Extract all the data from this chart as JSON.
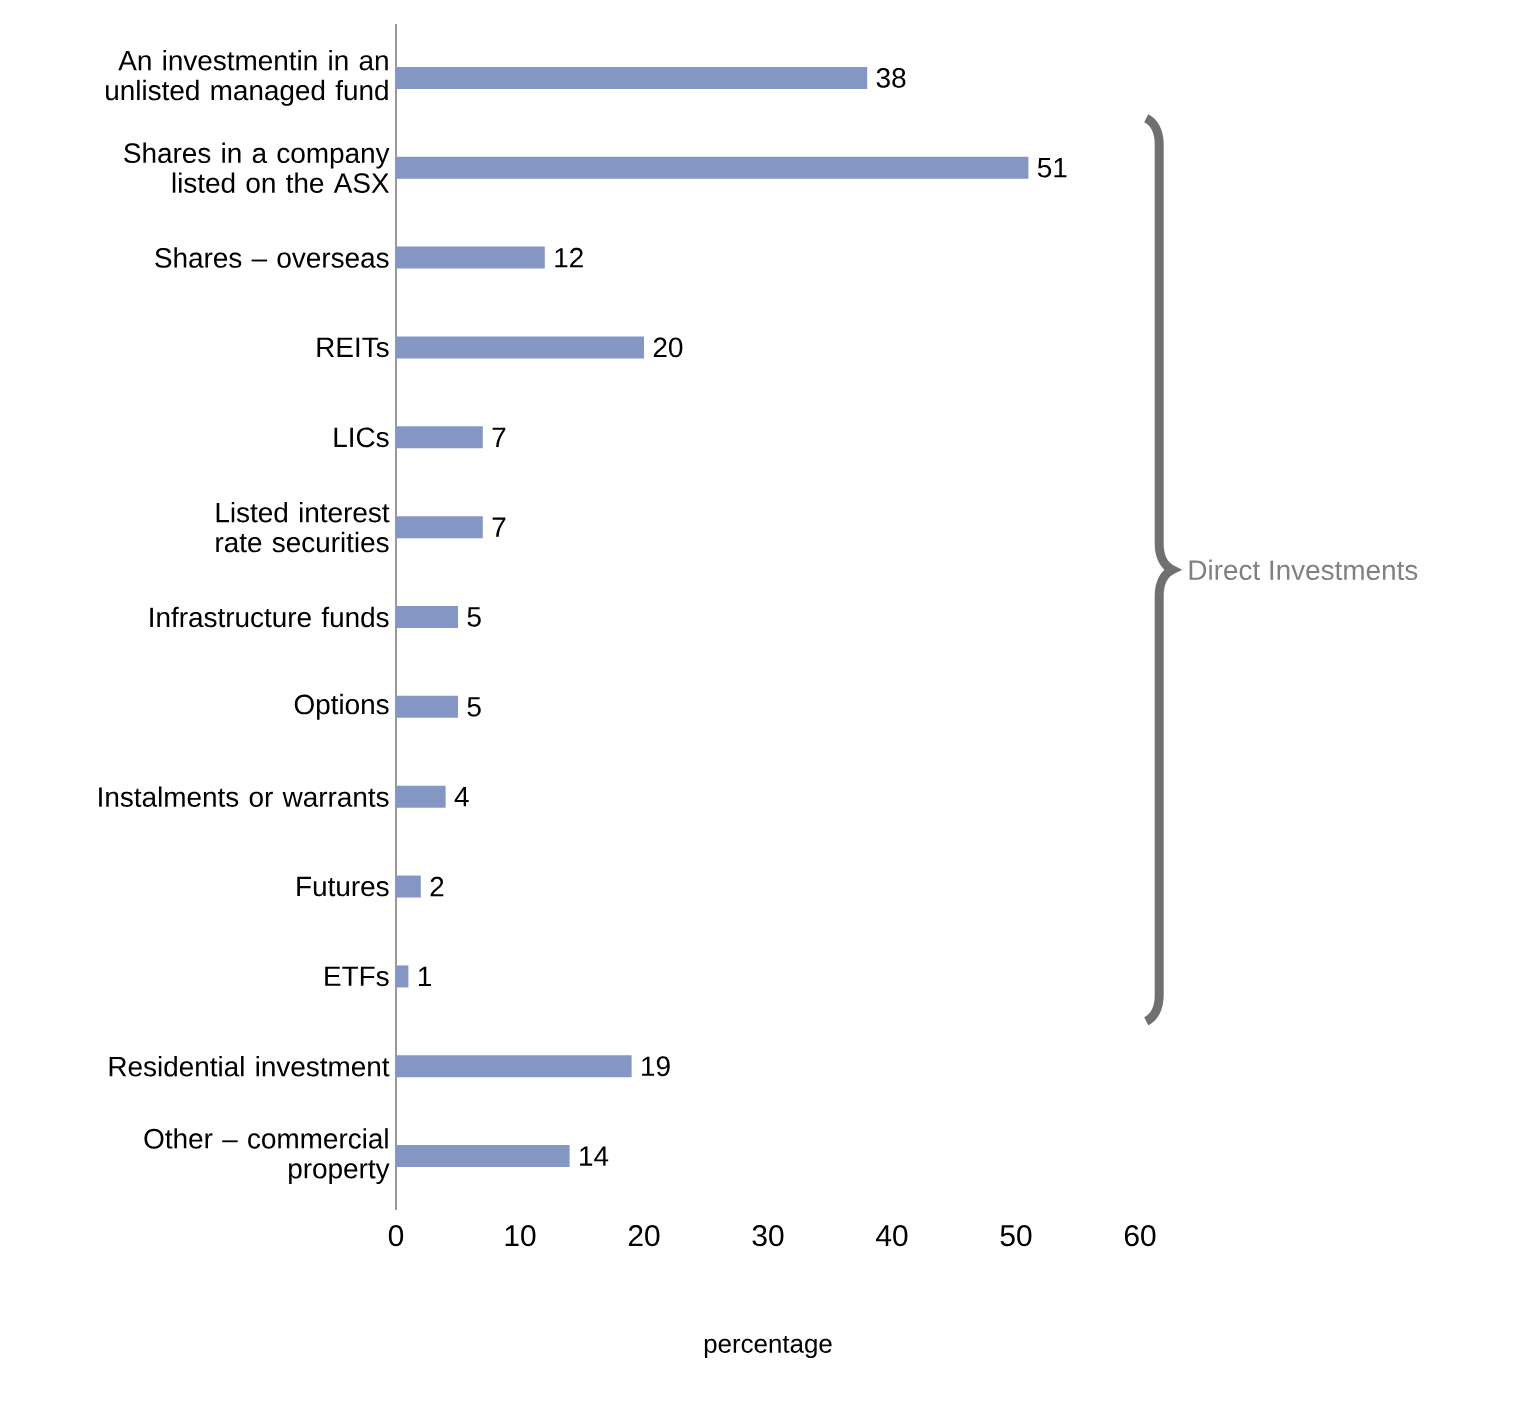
{
  "chart_data": {
    "type": "bar",
    "orientation": "horizontal",
    "categories": [
      "An investmentin in an unlisted managed fund",
      "Shares in a company listed on the ASX",
      "Shares – overseas",
      "REITs",
      "LICs",
      "Listed interest rate securities",
      "Infrastructure funds",
      "Options",
      "Instalments or warrants",
      "Futures",
      "ETFs",
      "Residential investment",
      "Other – commercial property"
    ],
    "values": [
      38,
      51,
      12,
      20,
      7,
      7,
      5,
      5,
      4,
      2,
      1,
      19,
      14
    ],
    "color": "#8496c4",
    "xlim": [
      0,
      60
    ],
    "xticks": [
      0,
      10,
      20,
      30,
      40,
      50,
      60
    ],
    "xlabel": "percentage",
    "data_labels": true,
    "annotations": [
      "Direct Investments"
    ]
  }
}
